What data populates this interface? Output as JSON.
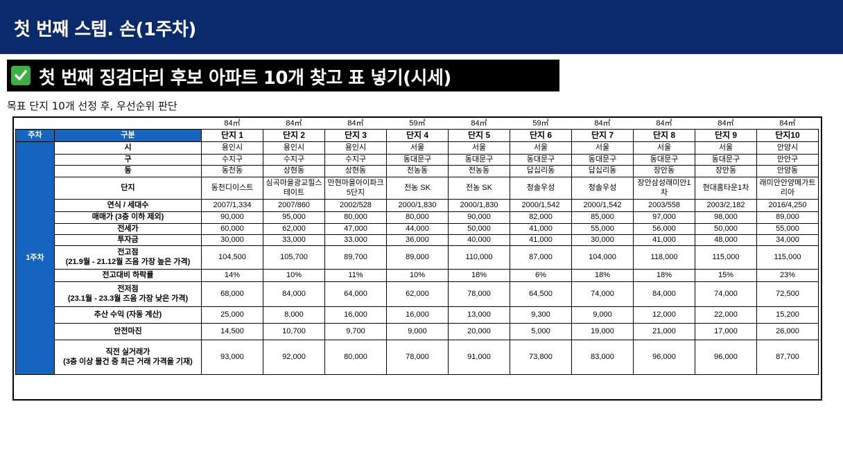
{
  "header": {
    "title": "첫 번째 스텝. 손(1주차)"
  },
  "section": {
    "title": "첫 번째 징검다리 후보 아파트 10개 찾고 표 넣기(시세)",
    "icon": "check-icon",
    "icon_color": "#3cb043"
  },
  "subtitle": "목표 단지 10개 선정 후, 우선순위 판단",
  "colors": {
    "header": "#0b2a6b",
    "table_header": "#1565c0"
  },
  "table": {
    "week_header": "주차",
    "category_header": "구분",
    "week_value": "1주차",
    "areas": [
      "84㎡",
      "84㎡",
      "84㎡",
      "59㎡",
      "84㎡",
      "59㎡",
      "84㎡",
      "84㎡",
      "84㎡",
      "84㎡"
    ],
    "complex_headers": [
      "단지 1",
      "단지 2",
      "단지 3",
      "단지 4",
      "단지 5",
      "단지 6",
      "단지 7",
      "단지 8",
      "단지 9",
      "단지10"
    ],
    "rows": [
      {
        "label": "시",
        "values": [
          "용인시",
          "용인시",
          "용인시",
          "서울",
          "서울",
          "서울",
          "서울",
          "서울",
          "서울",
          "안양시"
        ]
      },
      {
        "label": "구",
        "values": [
          "수지구",
          "수지구",
          "수지구",
          "동대문구",
          "동대문구",
          "동대문구",
          "동대문구",
          "동대문구",
          "동대문구",
          "만안구"
        ]
      },
      {
        "label": "동",
        "values": [
          "동천동",
          "상현동",
          "상현동",
          "전농동",
          "전농동",
          "답십리동",
          "답십리동",
          "장안동",
          "장안동",
          "안양동"
        ]
      },
      {
        "label": "단지",
        "values": [
          "동천디이스트",
          "심곡마을광교힐스테이트",
          "만현마을아이파크5단지",
          "전농 SK",
          "전농 SK",
          "청솔우성",
          "청솔우성",
          "장안삼성래미안1차",
          "현대홈타운1차",
          "래미안안양메가트리아"
        ]
      },
      {
        "label": "연식 / 세대수",
        "values": [
          "2007/1,334",
          "2007/860",
          "2002/528",
          "2000/1,830",
          "2000/1,830",
          "2000/1,542",
          "2000/1,542",
          "2003/558",
          "2003/2,182",
          "2016/4,250"
        ]
      },
      {
        "label": "매매가 (3층 이하 제외)",
        "values": [
          "90,000",
          "95,000",
          "80,000",
          "80,000",
          "90,000",
          "82,000",
          "85,000",
          "97,000",
          "98,000",
          "89,000"
        ]
      },
      {
        "label": "전세가",
        "values": [
          "60,000",
          "62,000",
          "47,000",
          "44,000",
          "50,000",
          "41,000",
          "55,000",
          "56,000",
          "50,000",
          "55,000"
        ]
      },
      {
        "label": "투자금",
        "values": [
          "30,000",
          "33,000",
          "33,000",
          "36,000",
          "40,000",
          "41,000",
          "30,000",
          "41,000",
          "48,000",
          "34,000"
        ]
      },
      {
        "label": "전고점",
        "sublabel": "(21.9월 - 21.12월 즈음 가장 높은 가격)",
        "values": [
          "104,500",
          "105,700",
          "89,700",
          "89,000",
          "110,000",
          "87,000",
          "104,000",
          "118,000",
          "115,000",
          "115,000"
        ]
      },
      {
        "label": "전고대비 하락률",
        "values": [
          "14%",
          "10%",
          "11%",
          "10%",
          "18%",
          "6%",
          "18%",
          "18%",
          "15%",
          "23%"
        ]
      },
      {
        "label": "전저점",
        "sublabel": "(23.1월 - 23.3월 즈음 가장 낮은 가격)",
        "values": [
          "68,000",
          "84,000",
          "64,000",
          "62,000",
          "78,000",
          "64,500",
          "74,000",
          "84,000",
          "74,000",
          "72,500"
        ]
      },
      {
        "label": "추산 수익 (자동 계산)",
        "values": [
          "25,000",
          "8,000",
          "16,000",
          "16,000",
          "13,000",
          "9,300",
          "9,000",
          "12,000",
          "22,000",
          "15,200"
        ]
      },
      {
        "label": "안전마진",
        "values": [
          "14,500",
          "10,700",
          "9,700",
          "9,000",
          "20,000",
          "5,000",
          "19,000",
          "21,000",
          "17,000",
          "26,000"
        ]
      },
      {
        "label": "직전 실거래가",
        "sublabel": "(3층 이상 물건 중 최근 거래 가격을 기재)",
        "values": [
          "93,000",
          "92,000",
          "80,000",
          "78,000",
          "91,000",
          "73,800",
          "83,000",
          "96,000",
          "96,000",
          "87,700"
        ]
      }
    ]
  }
}
